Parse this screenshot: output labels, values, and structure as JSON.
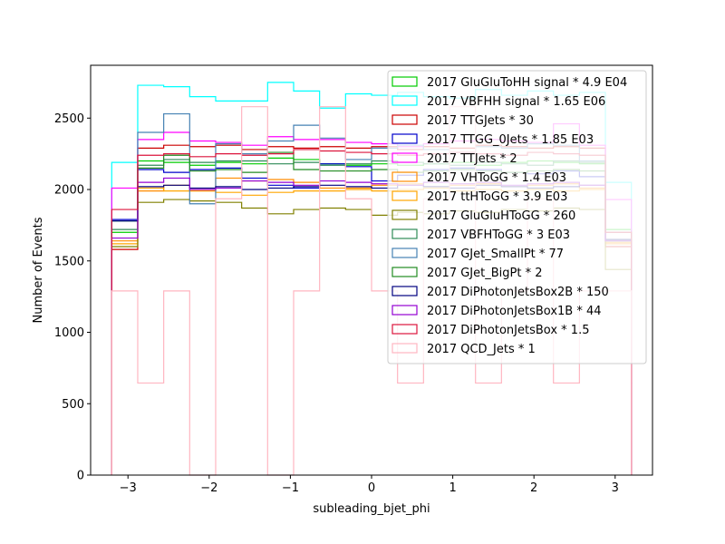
{
  "chart_data": {
    "type": "step",
    "xlabel": "subleading_bjet_phi",
    "ylabel": "Number of Events",
    "xlim": [
      -3.46,
      3.46
    ],
    "ylim": [
      0,
      2870
    ],
    "xticks": [
      -3,
      -2,
      -1,
      0,
      1,
      2,
      3
    ],
    "xtick_labels": [
      "−3",
      "−2",
      "−1",
      "0",
      "1",
      "2",
      "3"
    ],
    "yticks": [
      0,
      500,
      1000,
      1500,
      2000,
      2500
    ],
    "ytick_labels": [
      "0",
      "500",
      "1000",
      "1500",
      "2000",
      "2500"
    ],
    "bin_edges": [
      -3.2,
      -2.88,
      -2.56,
      -2.24,
      -1.92,
      -1.6,
      -1.28,
      -0.96,
      -0.64,
      -0.32,
      0.0,
      0.32,
      0.64,
      0.96,
      1.28,
      1.6,
      1.92,
      2.24,
      2.56,
      2.88,
      3.2
    ],
    "legend_position": "top-right",
    "series": [
      {
        "name": "2017 GluGluToHH signal * 4.9 E04",
        "color": "#00cc00",
        "values": [
          1700,
          2200,
          2190,
          2170,
          2190,
          2180,
          2220,
          2210,
          2180,
          2170,
          2180,
          2170,
          2180,
          2190,
          2170,
          2190,
          2200,
          2190,
          2180,
          1720
        ]
      },
      {
        "name": "2017 VBFHH signal * 1.65 E06",
        "color": "#00ffff",
        "values": [
          2190,
          2730,
          2720,
          2650,
          2620,
          2620,
          2750,
          2690,
          2570,
          2670,
          2660,
          2680,
          2650,
          2640,
          2700,
          2660,
          2690,
          2660,
          2680,
          2050
        ]
      },
      {
        "name": "2017 TTGJets * 30",
        "color": "#cc0000",
        "values": [
          1580,
          2290,
          2310,
          2300,
          2310,
          2280,
          2300,
          2290,
          2300,
          2290,
          2300,
          2280,
          2300,
          2290,
          2310,
          2300,
          2290,
          2300,
          2290,
          1600
        ]
      },
      {
        "name": "2017 TTGG_0Jets * 1.85 E03",
        "color": "#0000cc",
        "values": [
          1790,
          2140,
          2120,
          2140,
          2150,
          2080,
          2030,
          2010,
          2180,
          2160,
          2060,
          2100,
          2140,
          2150,
          2140,
          2120,
          2110,
          2130,
          2090,
          1640
        ]
      },
      {
        "name": "2017 TTJets * 2",
        "color": "#ff00ff",
        "values": [
          2010,
          2350,
          2400,
          2340,
          2330,
          2310,
          2370,
          2350,
          2350,
          2330,
          2320,
          2300,
          2320,
          2340,
          2350,
          2340,
          2330,
          2460,
          2310,
          1930
        ]
      },
      {
        "name": "2017 VHToGG * 1.4 E03",
        "color": "#ff8c00",
        "values": [
          1640,
          1990,
          2030,
          1990,
          2080,
          2060,
          2070,
          2050,
          2010,
          2010,
          2030,
          2040,
          2020,
          2030,
          2040,
          2020,
          2030,
          2040,
          2010,
          1620
        ]
      },
      {
        "name": "2017 ttHToGG * 3.9 E03",
        "color": "#ffa500",
        "values": [
          1620,
          2010,
          1990,
          2000,
          1980,
          1960,
          1980,
          1990,
          1990,
          2000,
          1990,
          2000,
          2010,
          1990,
          2000,
          1990,
          2000,
          1990,
          2000,
          1630
        ]
      },
      {
        "name": "2017 GluGluHToGG * 260",
        "color": "#808000",
        "values": [
          1600,
          1910,
          1930,
          1920,
          1910,
          1870,
          1830,
          1860,
          1870,
          1860,
          1820,
          1840,
          1830,
          1850,
          1840,
          1860,
          1850,
          1870,
          1860,
          1440
        ]
      },
      {
        "name": "2017 VBFHToGG * 3 E03",
        "color": "#2e8b57",
        "values": [
          1720,
          2170,
          2210,
          2190,
          2200,
          2200,
          2180,
          2190,
          2170,
          2180,
          2200,
          2190,
          2180,
          2170,
          2190,
          2180,
          2170,
          2200,
          2190,
          1700
        ]
      },
      {
        "name": "2017 GJet_SmallPt * 77",
        "color": "#4682b4",
        "values": [
          1780,
          2400,
          2530,
          1900,
          2320,
          2250,
          2340,
          2450,
          2360,
          2210,
          2290,
          2310,
          2280,
          2260,
          2300,
          2290,
          2320,
          2310,
          2200,
          1650
        ]
      },
      {
        "name": "2017 GJet_BigPt * 2",
        "color": "#228b22",
        "values": [
          1780,
          2150,
          2240,
          2130,
          2140,
          2120,
          2260,
          2140,
          2130,
          2130,
          2140,
          2120,
          2130,
          2140,
          2130,
          2120,
          2130,
          2140,
          2130,
          1640
        ]
      },
      {
        "name": "2017 DiPhotonJetsBox2B * 150",
        "color": "#000080",
        "values": [
          1780,
          2020,
          2030,
          2010,
          2020,
          2000,
          2010,
          2020,
          2030,
          2020,
          2010,
          2030,
          2020,
          2010,
          2030,
          2020,
          2010,
          2020,
          2030,
          1650
        ]
      },
      {
        "name": "2017 DiPhotonJetsBox1B * 44",
        "color": "#9400d3",
        "values": [
          1660,
          2050,
          2080,
          2000,
          2010,
          2060,
          2050,
          2030,
          2060,
          2050,
          2040,
          2030,
          2050,
          2040,
          2050,
          2030,
          2040,
          2050,
          2030,
          1640
        ]
      },
      {
        "name": "2017 DiPhotonJetsBox * 1.5",
        "color": "#dc143c",
        "values": [
          1860,
          2240,
          2250,
          2230,
          2250,
          2240,
          2250,
          2280,
          2270,
          2260,
          2250,
          2240,
          2250,
          2260,
          2250,
          2240,
          2260,
          2250,
          2240,
          1700
        ]
      },
      {
        "name": "2017 QCD_Jets * 1",
        "color": "#ffb6c1",
        "values": [
          1290,
          645,
          1290,
          0,
          1935,
          2580,
          0,
          1290,
          2580,
          1935,
          1290,
          645,
          1935,
          2580,
          645,
          1290,
          1935,
          645,
          1290,
          1290
        ]
      }
    ]
  }
}
